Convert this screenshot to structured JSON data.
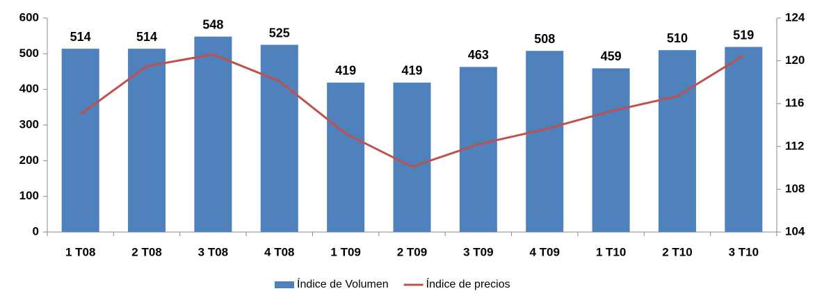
{
  "chart_data": {
    "type": "bar_line",
    "categories": [
      "1 T08",
      "2 T08",
      "3 T08",
      "4 T08",
      "1 T09",
      "2 T09",
      "3 T09",
      "4 T09",
      "1 T10",
      "2 T10",
      "3 T10"
    ],
    "series": [
      {
        "name": "Índice de Volumen",
        "color": "#4f81bd",
        "type": "bar",
        "values": [
          514,
          514,
          548,
          525,
          419,
          419,
          463,
          508,
          459,
          510,
          519
        ]
      },
      {
        "name": "Índice de precios",
        "color": "#c0504d",
        "type": "line",
        "axis": "y2",
        "values": [
          115.0,
          119.5,
          120.6,
          118.1,
          113.2,
          110.1,
          112.2,
          113.6,
          115.3,
          116.7,
          120.5
        ]
      }
    ],
    "ylim": [
      0,
      600
    ],
    "yticks": [
      0,
      100,
      200,
      300,
      400,
      500,
      600
    ],
    "y2lim": [
      104,
      124
    ],
    "y2ticks": [
      104,
      108,
      112,
      116,
      120,
      124
    ],
    "legend": "bottom"
  }
}
